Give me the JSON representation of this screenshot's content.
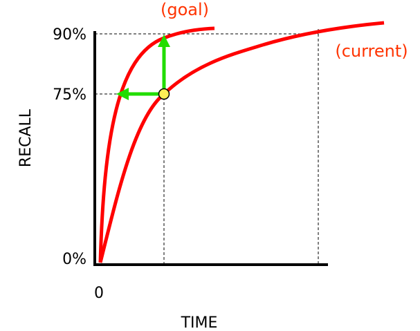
{
  "axes": {
    "y_label": "RECALL",
    "x_label": "TIME",
    "y_ticks": [
      "90%",
      "75%",
      "0%"
    ],
    "x_ticks": [
      "0"
    ]
  },
  "curves": {
    "goal": "(goal)",
    "current": "(current)"
  }
}
